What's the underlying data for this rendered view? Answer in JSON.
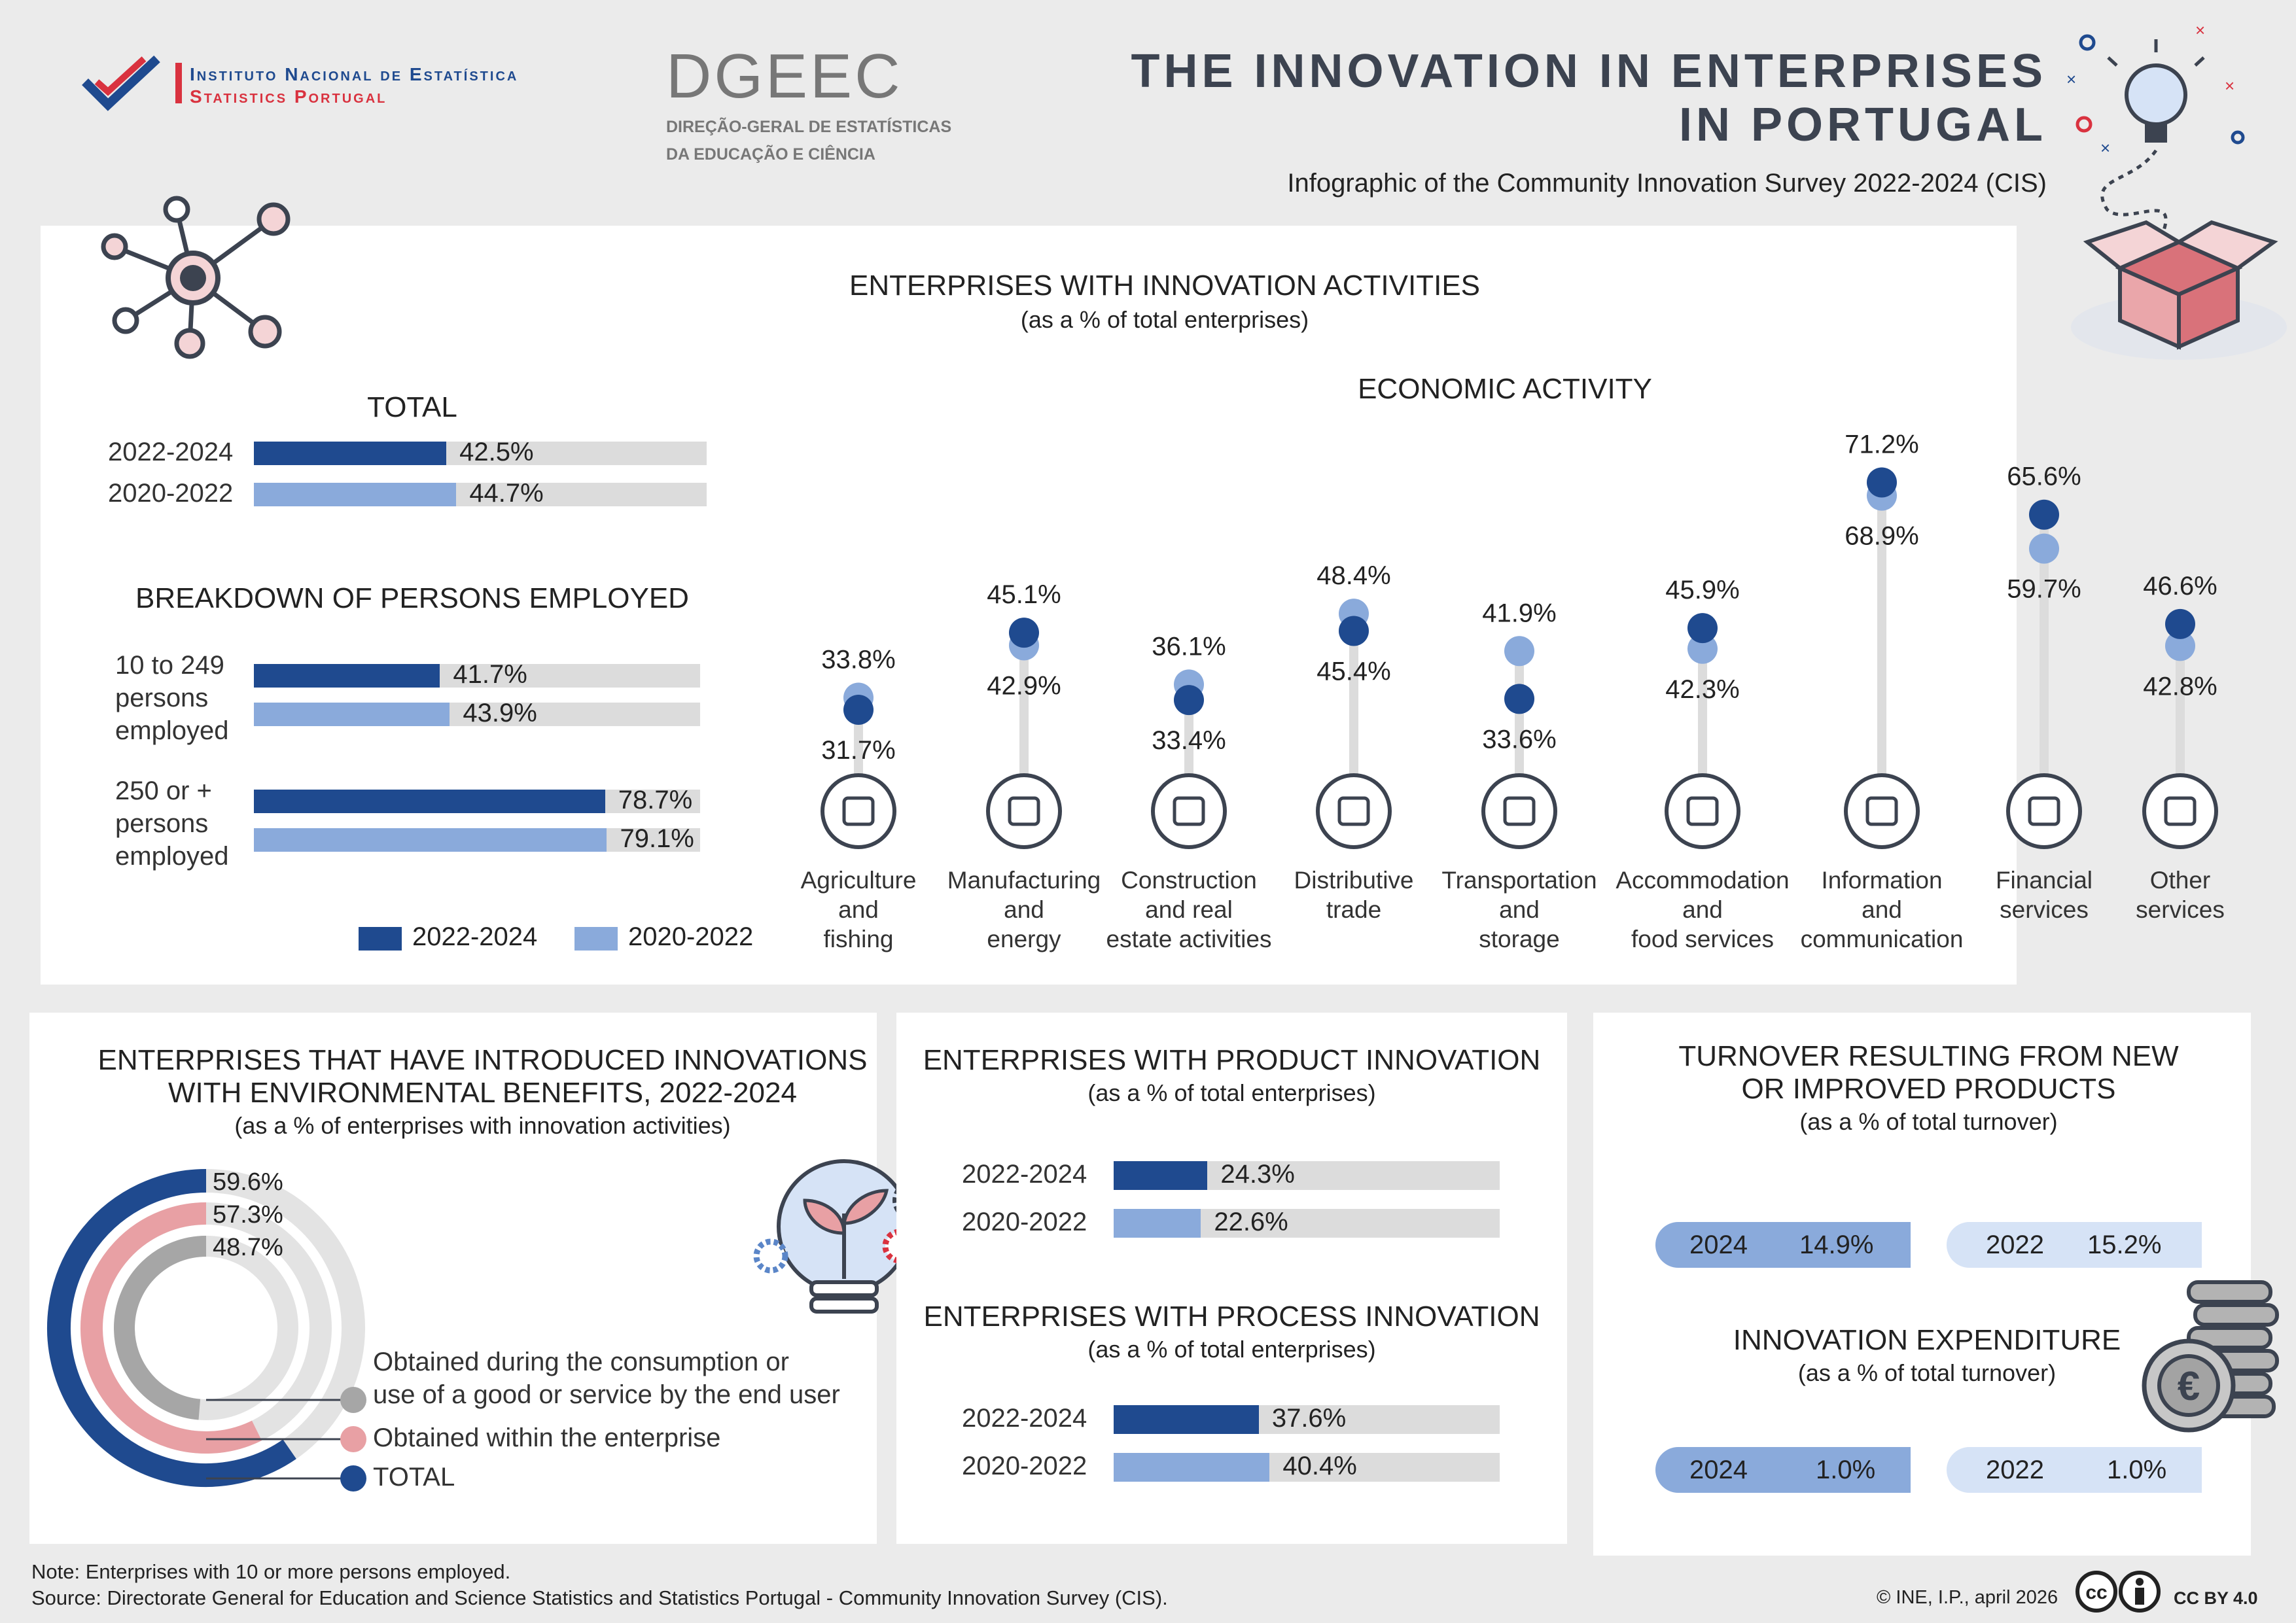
{
  "header": {
    "ine_line1": "Instituto Nacional de Estatística",
    "ine_line2": "Statistics Portugal",
    "dgeec_logo": "DGEEC",
    "dgeec_line1": "DIREÇÃO-GERAL DE ESTATÍSTICAS",
    "dgeec_line2": "DA EDUCAÇÃO E CIÊNCIA",
    "title_line1": "THE INNOVATION IN ENTERPRISES",
    "title_line2": "IN PORTUGAL",
    "subtitle": "Infographic of the Community Innovation Survey 2022-2024 (CIS)"
  },
  "colors": {
    "dark": "#1f4a8f",
    "light": "#8aaadb",
    "pink": "#e8a0a4",
    "grey": "#a6a6a6",
    "track": "#dcdcdc"
  },
  "innovation": {
    "title": "ENTERPRISES WITH INNOVATION ACTIVITIES",
    "subtitle": "(as a % of total enterprises)",
    "total_title": "TOTAL",
    "total": [
      {
        "period": "2022-2024",
        "label": "42.5%",
        "value": 42.5
      },
      {
        "period": "2020-2022",
        "label": "44.7%",
        "value": 44.7
      }
    ],
    "breakdown_title": "BREAKDOWN OF PERSONS EMPLOYED",
    "breakdown": [
      {
        "name": [
          "10 to 249",
          "persons",
          "employed"
        ],
        "v2024": 41.7,
        "l2024": "41.7%",
        "v2022": 43.9,
        "l2022": "43.9%"
      },
      {
        "name": [
          "250 or +",
          "persons",
          "employed"
        ],
        "v2024": 78.7,
        "l2024": "78.7%",
        "v2022": 79.1,
        "l2022": "79.1%"
      }
    ],
    "legend": [
      "2022-2024",
      "2020-2022"
    ],
    "activity_title": "ECONOMIC ACTIVITY"
  },
  "chart_data": {
    "type": "scatter",
    "title": "ENTERPRISES WITH INNOVATION ACTIVITIES - ECONOMIC ACTIVITY",
    "ylabel": "% of total enterprises",
    "series": [
      {
        "name": "2022-2024",
        "values": [
          31.7,
          45.1,
          33.4,
          45.4,
          33.6,
          45.9,
          71.2,
          65.6,
          46.6
        ]
      },
      {
        "name": "2020-2022",
        "values": [
          33.8,
          42.9,
          36.1,
          48.4,
          41.9,
          42.3,
          68.9,
          59.7,
          42.8
        ]
      }
    ],
    "categories": [
      [
        "Agriculture",
        "and",
        "fishing"
      ],
      [
        "Manufacturing",
        "and",
        "energy"
      ],
      [
        "Construction",
        "and real",
        "estate activities"
      ],
      [
        "Distributive",
        "trade"
      ],
      [
        "Transportation",
        "and",
        "storage"
      ],
      [
        "Accommodation",
        "and",
        "food services"
      ],
      [
        "Information",
        "and",
        "communication"
      ],
      [
        "Financial",
        "services"
      ],
      [
        "Other",
        "services"
      ]
    ],
    "top_labels": [
      "33.8%",
      "45.1%",
      "36.1%",
      "48.4%",
      "41.9%",
      "45.9%",
      "71.2%",
      "65.6%",
      "46.6%"
    ],
    "bottom_labels": [
      "31.7%",
      "42.9%",
      "33.4%",
      "45.4%",
      "33.6%",
      "42.3%",
      "68.9%",
      "59.7%",
      "42.8%"
    ]
  },
  "environment": {
    "title_line1": "ENTERPRISES THAT HAVE INTRODUCED INNOVATIONS",
    "title_line2": "WITH ENVIRONMENTAL BENEFITS, 2022-2024",
    "subtitle": "(as a % of enterprises with innovation activities)",
    "rings": [
      {
        "name": "TOTAL",
        "value": 59.6,
        "label": "59.6%"
      },
      {
        "name": "Obtained within the enterprise",
        "value": 57.3,
        "label": "57.3%"
      },
      {
        "name": "Obtained during the consumption or use of a good or service by the end user",
        "value": 48.7,
        "label": "48.7%"
      }
    ],
    "legend_consumption_1": "Obtained during the consumption or",
    "legend_consumption_2": "use of a good or service by the end user",
    "legend_within": "Obtained within the enterprise",
    "legend_total": "TOTAL"
  },
  "product": {
    "title": "ENTERPRISES WITH PRODUCT INNOVATION",
    "subtitle": "(as a % of total enterprises)",
    "rows": [
      {
        "period": "2022-2024",
        "label": "24.3%",
        "value": 24.3
      },
      {
        "period": "2020-2022",
        "label": "22.6%",
        "value": 22.6
      }
    ]
  },
  "process": {
    "title": "ENTERPRISES WITH PROCESS INNOVATION",
    "subtitle": "(as a % of total enterprises)",
    "rows": [
      {
        "period": "2022-2024",
        "label": "37.6%",
        "value": 37.6
      },
      {
        "period": "2020-2022",
        "label": "40.4%",
        "value": 40.4
      }
    ]
  },
  "turnover": {
    "title_line1": "TURNOVER RESULTING FROM NEW",
    "title_line2": "OR IMPROVED PRODUCTS",
    "subtitle": "(as a % of total turnover)",
    "a_year": "2024",
    "a_value": "14.9%",
    "b_year": "2022",
    "b_value": "15.2%"
  },
  "expenditure": {
    "title": "INNOVATION EXPENDITURE",
    "subtitle": "(as a % of total turnover)",
    "a_year": "2024",
    "a_value": "1.0%",
    "b_year": "2022",
    "b_value": "1.0%"
  },
  "footer": {
    "note": "Note: Enterprises with 10 or more persons employed.",
    "source": "Source: Directorate General for Education and Science Statistics and Statistics Portugal - Community Innovation Survey (CIS).",
    "copyright": "© INE, I.P., april 2026",
    "license": "CC BY 4.0"
  }
}
